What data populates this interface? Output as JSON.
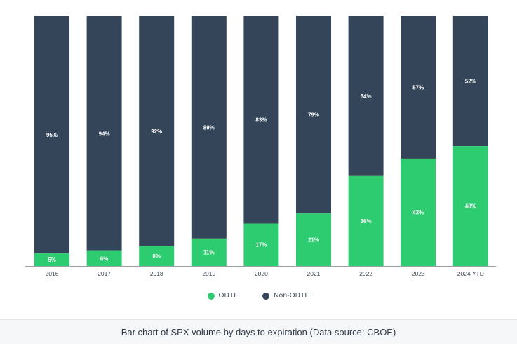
{
  "colors": {
    "odte": "#2ecc71",
    "non_odte": "#344459",
    "axis": "#9aa0a6",
    "bar_label": "#ffffff",
    "tick_label": "#3b4656"
  },
  "legend": {
    "odte_label": "ODTE",
    "non_odte_label": "Non-ODTE"
  },
  "caption": "Bar chart of SPX volume by days to expiration (Data source: CBOE)",
  "chart_data": {
    "type": "bar",
    "stacked": true,
    "categories": [
      "2016",
      "2017",
      "2018",
      "2019",
      "2020",
      "2021",
      "2022",
      "2023",
      "2024 YTD"
    ],
    "series": [
      {
        "name": "ODTE",
        "values": [
          5,
          6,
          8,
          11,
          17,
          21,
          36,
          43,
          48
        ],
        "labels": [
          "5%",
          "6%",
          "8%",
          "11%",
          "17%",
          "21%",
          "36%",
          "43%",
          "48%"
        ]
      },
      {
        "name": "Non-ODTE",
        "values": [
          95,
          94,
          92,
          89,
          83,
          79,
          64,
          57,
          52
        ],
        "labels": [
          "95%",
          "94%",
          "92%",
          "89%",
          "83%",
          "79%",
          "64%",
          "57%",
          "52%"
        ]
      }
    ],
    "ylim": [
      0,
      100
    ],
    "unit": "%",
    "legend_position": "bottom"
  }
}
